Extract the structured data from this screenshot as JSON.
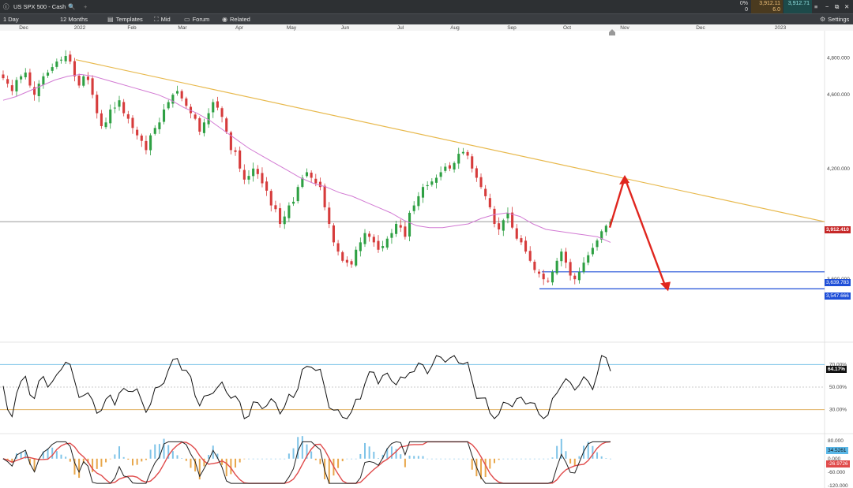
{
  "toolbar_top": {
    "symbol": "US SPX 500 - Cash",
    "quote": {
      "change_pct": "0%",
      "change_abs": "0",
      "bid": "3,912.11",
      "ask": "3,912.71",
      "spread": "6.0"
    }
  },
  "toolbar": {
    "interval": "1 Day",
    "range": "12 Months",
    "templates": "Templates",
    "mid": "Mid",
    "forum": "Forum",
    "related": "Related",
    "settings": "Settings"
  },
  "colors": {
    "up": "#2ea043",
    "down": "#d63b3b",
    "ma": "#d27ad3",
    "trendline": "#e8b94d",
    "arrow": "#e0261f",
    "support": "#1f4fd8"
  },
  "chart_data": [
    {
      "type": "candlestick",
      "title": "US SPX 500 - Cash",
      "x_ticks": [
        "Dec",
        "2022",
        "Feb",
        "Mar",
        "Apr",
        "May",
        "Jun",
        "Jul",
        "Aug",
        "Sep",
        "Oct",
        "Nov",
        "Dec",
        "2023"
      ],
      "y_ticks": [
        "4,800.000",
        "4,600.000",
        "4,200.000",
        "3,600.000"
      ],
      "ylim": [
        3400,
        4870
      ],
      "last_price": "3,912.410",
      "support_labels": [
        "3,639.783",
        "3,547.666"
      ],
      "series": [
        {
          "name": "Close",
          "values": [
            4690,
            4660,
            4620,
            4680,
            4700,
            4720,
            4650,
            4600,
            4660,
            4700,
            4720,
            4750,
            4780,
            4790,
            4810,
            4780,
            4700,
            4650,
            4700,
            4680,
            4600,
            4500,
            4430,
            4450,
            4520,
            4530,
            4570,
            4500,
            4470,
            4420,
            4380,
            4350,
            4300,
            4380,
            4420,
            4450,
            4520,
            4560,
            4600,
            4620,
            4580,
            4540,
            4500,
            4470,
            4400,
            4450,
            4500,
            4560,
            4530,
            4480,
            4400,
            4300,
            4290,
            4200,
            4140,
            4160,
            4200,
            4170,
            4120,
            4080,
            4000,
            3980,
            3900,
            3940,
            4000,
            4020,
            4100,
            4150,
            4180,
            4150,
            4120,
            4100,
            3990,
            3900,
            3800,
            3750,
            3700,
            3690,
            3680,
            3760,
            3800,
            3850,
            3830,
            3800,
            3760,
            3780,
            3820,
            3850,
            3900,
            3880,
            3830,
            3960,
            4000,
            4050,
            4100,
            4110,
            4130,
            4150,
            4180,
            4210,
            4200,
            4230,
            4280,
            4290,
            4270,
            4200,
            4150,
            4100,
            4050,
            3990,
            3900,
            3870,
            3920,
            3960,
            3880,
            3820,
            3800,
            3750,
            3700,
            3650,
            3630,
            3600,
            3590,
            3640,
            3700,
            3750,
            3690,
            3620,
            3600,
            3640,
            3690,
            3730,
            3770,
            3810,
            3860,
            3890,
            3912
          ]
        },
        {
          "name": "Moving Average",
          "values": [
            4570,
            4590,
            4620,
            4650,
            4680,
            4700,
            4710,
            4700,
            4680,
            4660,
            4640,
            4620,
            4600,
            4570,
            4530,
            4500,
            4460,
            4410,
            4360,
            4310,
            4270,
            4230,
            4190,
            4150,
            4120,
            4100,
            4070,
            4050,
            4020,
            3990,
            3960,
            3920,
            3890,
            3880,
            3880,
            3890,
            3900,
            3930,
            3950,
            3960,
            3940,
            3900,
            3870,
            3860,
            3850,
            3840,
            3830,
            3800
          ]
        }
      ],
      "annotations": [
        "downtrend line",
        "rise to resistance",
        "decline to support"
      ]
    },
    {
      "type": "line",
      "name": "RSI",
      "y_ticks": [
        "70.00%",
        "50.00%",
        "30.00%"
      ],
      "last_value": "64.17%"
    },
    {
      "type": "bar",
      "name": "MACD",
      "y_ticks": [
        "80.000",
        "0.000",
        "-60.000",
        "-120.000"
      ],
      "labels": [
        "34.5261",
        "-26.9726"
      ]
    }
  ]
}
